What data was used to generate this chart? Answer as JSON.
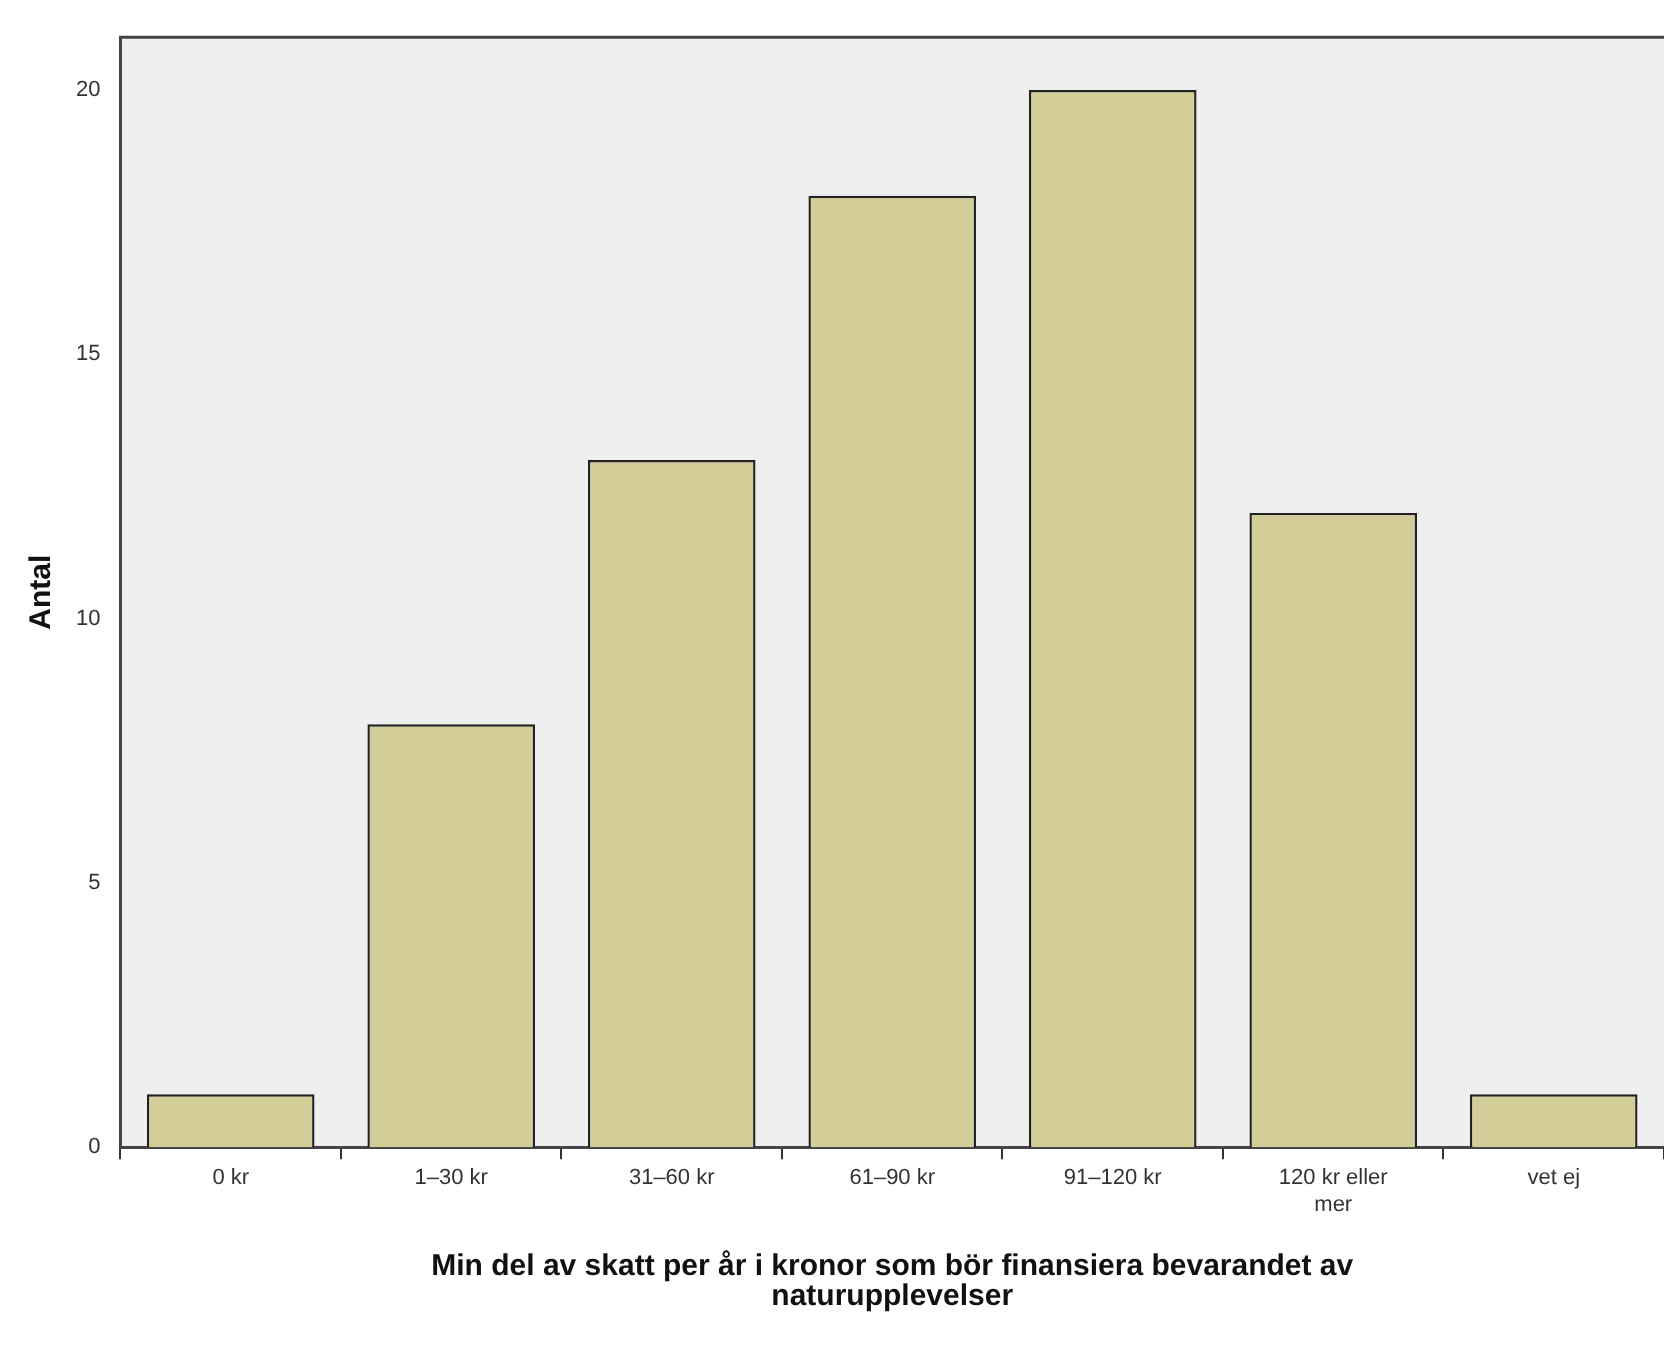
{
  "chart_data": {
    "type": "bar",
    "xlabel": "Min del av skatt per år i kronor som bör finansiera bevarandet av naturupplevelser",
    "ylabel": "Antal",
    "categories": [
      "0 kr",
      "1–30 kr",
      "31–60 kr",
      "61–90 kr",
      "91–120 kr",
      "120 kr eller mer",
      "vet ej"
    ],
    "values": [
      1,
      8,
      13,
      18,
      20,
      12,
      1
    ],
    "color": "#d3ce97",
    "ylim": [
      0,
      21
    ],
    "yticks": [
      0,
      5,
      10,
      15,
      20
    ],
    "grid": false,
    "legend": false
  }
}
